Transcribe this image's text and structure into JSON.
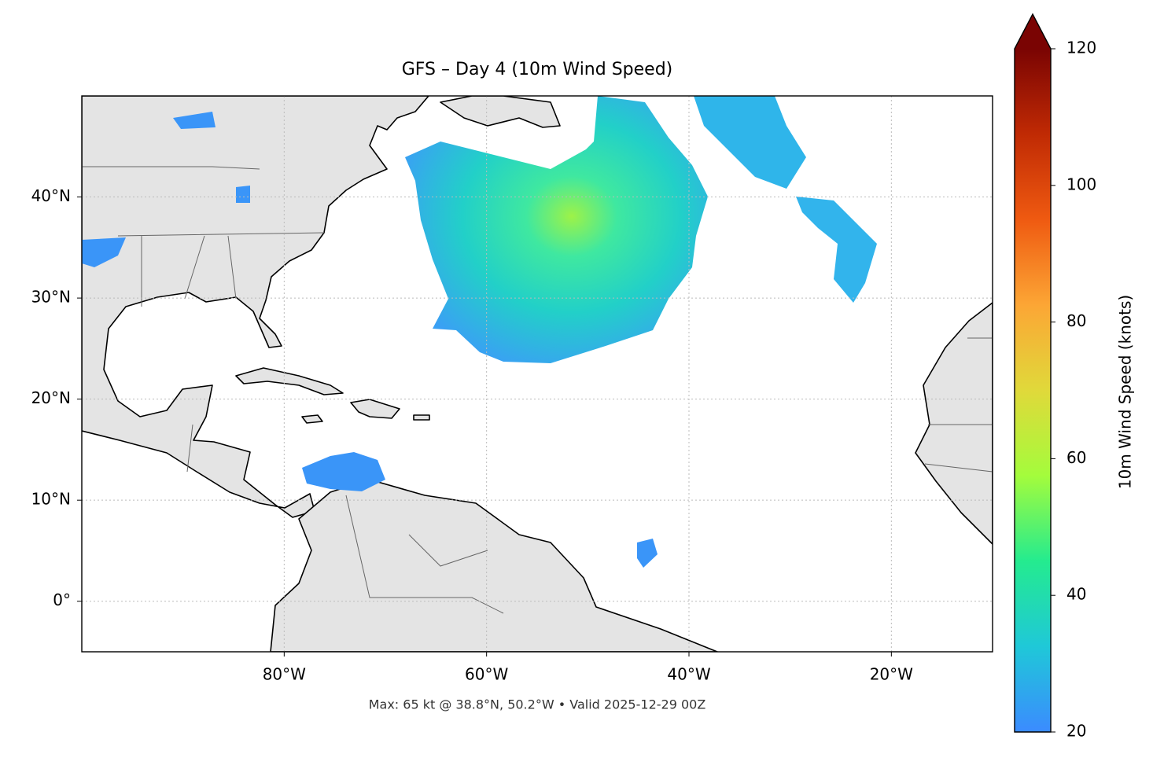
{
  "chart_data": {
    "type": "map",
    "title": "GFS – Day 4 (10m Wind Speed)",
    "footnote": "Max: 65 kt @ 38.8°N, 50.2°W • Valid 2025-12-29 00Z",
    "xlim": [
      -100,
      -10
    ],
    "ylim": [
      -5,
      50
    ],
    "xticks": [
      {
        "value": -80,
        "label": "80°W"
      },
      {
        "value": -60,
        "label": "60°W"
      },
      {
        "value": -40,
        "label": "40°W"
      },
      {
        "value": -20,
        "label": "20°W"
      }
    ],
    "yticks": [
      {
        "value": 0,
        "label": "0°"
      },
      {
        "value": 10,
        "label": "10°N"
      },
      {
        "value": 20,
        "label": "20°N"
      },
      {
        "value": 30,
        "label": "30°N"
      },
      {
        "value": 40,
        "label": "40°N"
      }
    ],
    "grid": true,
    "colorbar": {
      "label": "10m Wind Speed (knots)",
      "lim": [
        20,
        120
      ],
      "ticks": [
        20,
        40,
        60,
        80,
        100,
        120
      ],
      "colors": [
        "#3b8bff",
        "#1fc8d8",
        "#24eb8f",
        "#a4fc3c",
        "#e0d93a",
        "#fca635",
        "#ef5a11",
        "#c02a04",
        "#7a0403"
      ]
    }
  }
}
